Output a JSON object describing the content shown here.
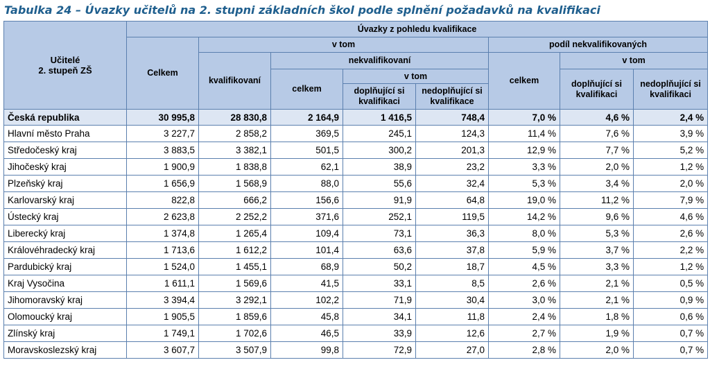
{
  "title": "Tabulka 24 – Úvazky učitelů na 2. stupni základních škol podle splnění požadavků na kvalifikaci",
  "header": {
    "stub_line1": "Učitelé",
    "stub_line2": "2. stupeň ZŠ",
    "top": "Úvazky z pohledu kvalifikace",
    "celkem": "Celkem",
    "v_tom": "v tom",
    "podil": "podíl nekvalifikovaných",
    "kvalifikovani": "kvalifikovaní",
    "nekvalifikovani": "nekvalifikovaní",
    "podil_celkem": "celkem",
    "podil_v_tom": "v tom",
    "nekv_celkem": "celkem",
    "nekv_v_tom": "v tom",
    "doplnujici": "doplňující si kvalifikaci",
    "nedoplnujici": "nedoplňující si kvalifikace",
    "podil_doplnujici": "doplňující si kvalifikaci",
    "podil_nedoplnujici": "nedoplňující si kvalifikaci"
  },
  "rows": [
    {
      "region": "Česká republika",
      "celkem": "30 995,8",
      "kvalif": "28 830,8",
      "nekv": "2 164,9",
      "dopl": "1 416,5",
      "nedopl": "748,4",
      "p_celkem": "7,0 %",
      "p_dopl": "4,6 %",
      "p_nedopl": "2,4 %"
    },
    {
      "region": "Hlavní město Praha",
      "celkem": "3 227,7",
      "kvalif": "2 858,2",
      "nekv": "369,5",
      "dopl": "245,1",
      "nedopl": "124,3",
      "p_celkem": "11,4 %",
      "p_dopl": "7,6 %",
      "p_nedopl": "3,9 %"
    },
    {
      "region": "Středočeský kraj",
      "celkem": "3 883,5",
      "kvalif": "3 382,1",
      "nekv": "501,5",
      "dopl": "300,2",
      "nedopl": "201,3",
      "p_celkem": "12,9 %",
      "p_dopl": "7,7 %",
      "p_nedopl": "5,2 %"
    },
    {
      "region": "Jihočeský kraj",
      "celkem": "1 900,9",
      "kvalif": "1 838,8",
      "nekv": "62,1",
      "dopl": "38,9",
      "nedopl": "23,2",
      "p_celkem": "3,3 %",
      "p_dopl": "2,0 %",
      "p_nedopl": "1,2 %"
    },
    {
      "region": "Plzeňský kraj",
      "celkem": "1 656,9",
      "kvalif": "1 568,9",
      "nekv": "88,0",
      "dopl": "55,6",
      "nedopl": "32,4",
      "p_celkem": "5,3 %",
      "p_dopl": "3,4 %",
      "p_nedopl": "2,0 %"
    },
    {
      "region": "Karlovarský kraj",
      "celkem": "822,8",
      "kvalif": "666,2",
      "nekv": "156,6",
      "dopl": "91,9",
      "nedopl": "64,8",
      "p_celkem": "19,0 %",
      "p_dopl": "11,2 %",
      "p_nedopl": "7,9 %"
    },
    {
      "region": "Ústecký kraj",
      "celkem": "2 623,8",
      "kvalif": "2 252,2",
      "nekv": "371,6",
      "dopl": "252,1",
      "nedopl": "119,5",
      "p_celkem": "14,2 %",
      "p_dopl": "9,6 %",
      "p_nedopl": "4,6 %"
    },
    {
      "region": "Liberecký kraj",
      "celkem": "1 374,8",
      "kvalif": "1 265,4",
      "nekv": "109,4",
      "dopl": "73,1",
      "nedopl": "36,3",
      "p_celkem": "8,0 %",
      "p_dopl": "5,3 %",
      "p_nedopl": "2,6 %"
    },
    {
      "region": "Královéhradecký kraj",
      "celkem": "1 713,6",
      "kvalif": "1 612,2",
      "nekv": "101,4",
      "dopl": "63,6",
      "nedopl": "37,8",
      "p_celkem": "5,9 %",
      "p_dopl": "3,7 %",
      "p_nedopl": "2,2 %"
    },
    {
      "region": "Pardubický kraj",
      "celkem": "1 524,0",
      "kvalif": "1 455,1",
      "nekv": "68,9",
      "dopl": "50,2",
      "nedopl": "18,7",
      "p_celkem": "4,5 %",
      "p_dopl": "3,3 %",
      "p_nedopl": "1,2 %"
    },
    {
      "region": "Kraj Vysočina",
      "celkem": "1 611,1",
      "kvalif": "1 569,6",
      "nekv": "41,5",
      "dopl": "33,1",
      "nedopl": "8,5",
      "p_celkem": "2,6 %",
      "p_dopl": "2,1 %",
      "p_nedopl": "0,5 %"
    },
    {
      "region": "Jihomoravský kraj",
      "celkem": "3 394,4",
      "kvalif": "3 292,1",
      "nekv": "102,2",
      "dopl": "71,9",
      "nedopl": "30,4",
      "p_celkem": "3,0 %",
      "p_dopl": "2,1 %",
      "p_nedopl": "0,9 %"
    },
    {
      "region": "Olomoucký kraj",
      "celkem": "1 905,5",
      "kvalif": "1 859,6",
      "nekv": "45,8",
      "dopl": "34,1",
      "nedopl": "11,8",
      "p_celkem": "2,4 %",
      "p_dopl": "1,8 %",
      "p_nedopl": "0,6 %"
    },
    {
      "region": "Zlínský kraj",
      "celkem": "1 749,1",
      "kvalif": "1 702,6",
      "nekv": "46,5",
      "dopl": "33,9",
      "nedopl": "12,6",
      "p_celkem": "2,7 %",
      "p_dopl": "1,9 %",
      "p_nedopl": "0,7 %"
    },
    {
      "region": "Moravskoslezský kraj",
      "celkem": "3 607,7",
      "kvalif": "3 507,9",
      "nekv": "99,8",
      "dopl": "72,9",
      "nedopl": "27,0",
      "p_celkem": "2,8 %",
      "p_dopl": "2,0 %",
      "p_nedopl": "0,7 %"
    }
  ],
  "colors": {
    "header_bg": "#b7cae6",
    "total_bg": "#dde6f3",
    "border": "#5a7fae",
    "title": "#1f5f8e"
  }
}
